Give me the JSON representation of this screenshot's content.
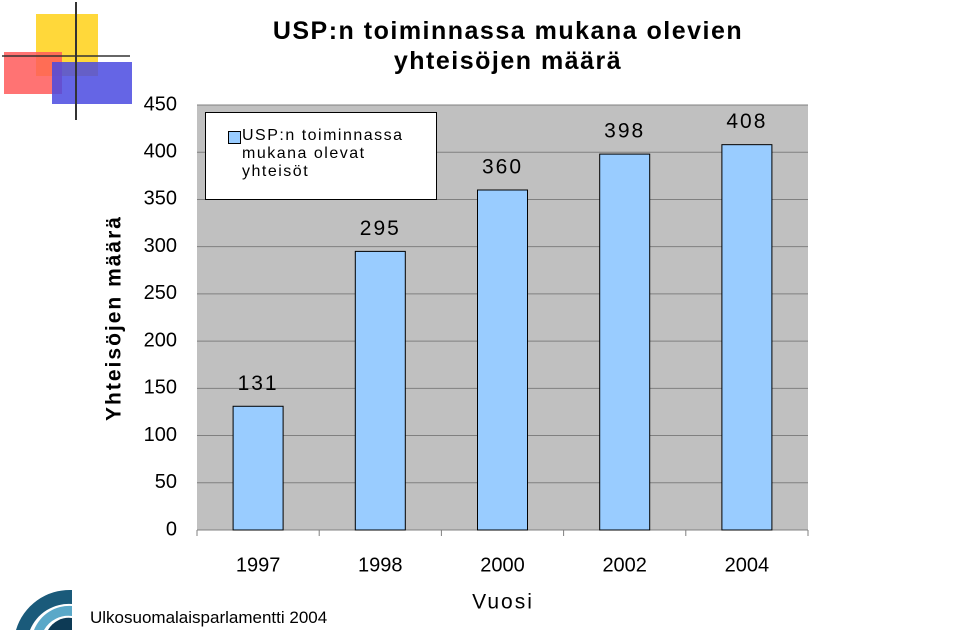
{
  "chart_data": {
    "type": "bar",
    "title": "USP:n toiminnassa mukana olevien yhteisöjen määrä",
    "x_label": "Vuosi",
    "y_label": "Yhteisöjen määrä",
    "categories": [
      "1997",
      "1998",
      "2000",
      "2002",
      "2004"
    ],
    "series": [
      {
        "name": "USP:n toiminnassa mukana olevat yhteisöt",
        "color": "#99ccff",
        "values": [
          131,
          295,
          360,
          398,
          408
        ]
      }
    ],
    "ylim": [
      0,
      450
    ],
    "yticks": [
      0,
      50,
      100,
      150,
      200,
      250,
      300,
      350,
      400,
      450
    ],
    "grid": true
  },
  "footer": "Ulkosuomalaisparlamentti 2004"
}
